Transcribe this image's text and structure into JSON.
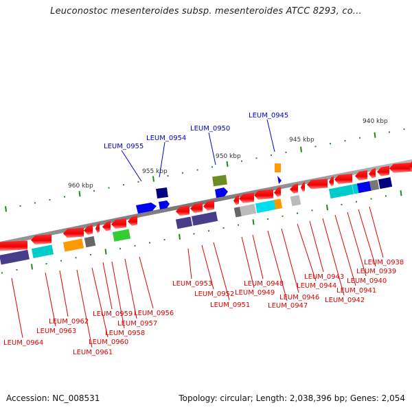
{
  "header": {
    "title": "Leuconostoc mesenteroides subsp. mesenteroides ATCC 8293, co..."
  },
  "footer": {
    "accession": "Accession: NC_008531",
    "summary": "Topology: circular; Length: 2,038,396 bp; Genes: 2,054"
  },
  "ruler": {
    "ticks": [
      {
        "label": "960 kbp",
        "kbp": 960
      },
      {
        "label": "955 kbp",
        "kbp": 955
      },
      {
        "label": "950 kbp",
        "kbp": 950
      },
      {
        "label": "945 kbp",
        "kbp": 945
      },
      {
        "label": "940 kbp",
        "kbp": 940
      }
    ]
  },
  "colors": {
    "gene_forward": "#ee0000",
    "gene_reverse_label": "#0000cc",
    "backbone": "#808080",
    "tick": "#1a8a1a",
    "cog_blue": "#0000ee",
    "cog_navy": "#000080",
    "cog_olive": "#6b8e23",
    "cog_orange": "#ff9900",
    "cog_cyan": "#00cccc",
    "cog_green": "#33cc33",
    "cog_purple": "#483d8b",
    "cog_gray": "#666666",
    "cog_lightgray": "#bbbbbb"
  },
  "genes_top": [
    {
      "label": "LEUM_0955"
    },
    {
      "label": "LEUM_0954"
    },
    {
      "label": "LEUM_0950"
    },
    {
      "label": "LEUM_0945"
    }
  ],
  "genes_bottom": [
    {
      "label": "LEUM_0964"
    },
    {
      "label": "LEUM_0963"
    },
    {
      "label": "LEUM_0962"
    },
    {
      "label": "LEUM_0961"
    },
    {
      "label": "LEUM_0960"
    },
    {
      "label": "LEUM_0959"
    },
    {
      "label": "LEUM_0958"
    },
    {
      "label": "LEUM_0957"
    },
    {
      "label": "LEUM_0956"
    },
    {
      "label": "LEUM_0953"
    },
    {
      "label": "LEUM_0952"
    },
    {
      "label": "LEUM_0951"
    },
    {
      "label": "LEUM_0949"
    },
    {
      "label": "LEUM_0948"
    },
    {
      "label": "LEUM_0947"
    },
    {
      "label": "LEUM_0946"
    },
    {
      "label": "LEUM_0944"
    },
    {
      "label": "LEUM_0943"
    },
    {
      "label": "LEUM_0942"
    },
    {
      "label": "LEUM_0941"
    },
    {
      "label": "LEUM_0940"
    },
    {
      "label": "LEUM_0939"
    },
    {
      "label": "LEUM_0938"
    }
  ]
}
